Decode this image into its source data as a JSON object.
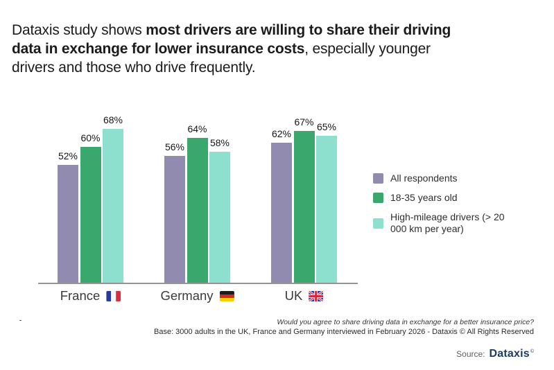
{
  "title": {
    "lines": [
      {
        "segments": [
          {
            "text": "Dataxis study shows ",
            "bold": false
          },
          {
            "text": "most drivers are willing to share their driving",
            "bold": true
          }
        ]
      },
      {
        "segments": [
          {
            "text": "data in exchange for lower insurance costs",
            "bold": true
          },
          {
            "text": ", especially younger",
            "bold": false
          }
        ]
      },
      {
        "segments": [
          {
            "text": "drivers and those who drive frequently.",
            "bold": false
          }
        ]
      }
    ]
  },
  "chart_data": {
    "type": "bar",
    "categories": [
      {
        "label": "France",
        "flag": "fr"
      },
      {
        "label": "Germany",
        "flag": "de"
      },
      {
        "label": "UK",
        "flag": "gb"
      }
    ],
    "series": [
      {
        "name": "All respondents",
        "color": "#918bb0",
        "values": [
          52,
          56,
          62
        ]
      },
      {
        "name": "18-35 years old",
        "color": "#3aa76d",
        "values": [
          60,
          64,
          67
        ]
      },
      {
        "name": "High-mileage drivers (> 20 000 km per year)",
        "color": "#8ce0cd",
        "values": [
          68,
          58,
          65
        ]
      }
    ],
    "value_suffix": "%",
    "data_labels": true,
    "grid": false,
    "axis_line_color": "#949494",
    "legend_position": "right"
  },
  "footnote": {
    "dash": "-",
    "question": "Would you agree to share driving data in exchange for a better insurance price?",
    "base": "Base: 3000 adults in the UK, France and Germany interviewed in February 2026 - Dataxis © All Rights Reserved"
  },
  "source": {
    "label": "Source:",
    "brand": "Dataxis",
    "mark": "©"
  }
}
